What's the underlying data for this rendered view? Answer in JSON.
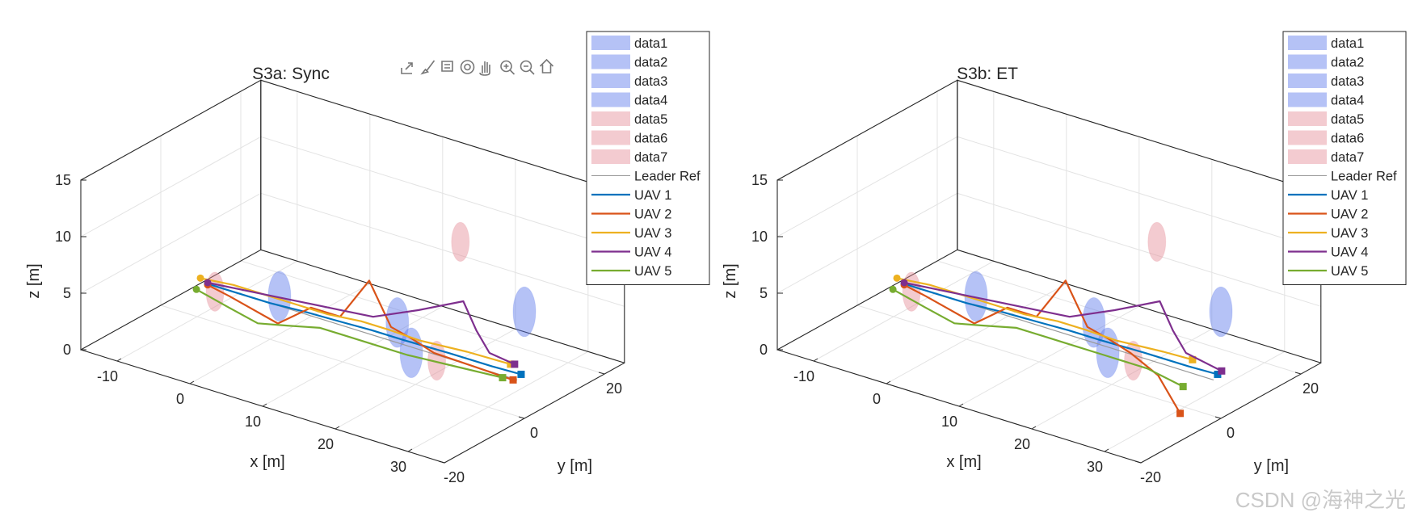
{
  "watermark": "CSDN @海神之光",
  "colors": {
    "obstacle_blue": "#5a78ea",
    "obstacle_red": "#e58c96",
    "leader_ref": "#9a9a9a",
    "uav1": "#0072BD",
    "uav2": "#D95319",
    "uav3": "#EDB120",
    "uav4": "#7E2F8E",
    "uav5": "#77AC30"
  },
  "toolbar": {
    "icons": [
      "export-icon",
      "brush-icon",
      "datatip-icon",
      "rotate-icon",
      "pan-icon",
      "zoom-in-icon",
      "zoom-out-icon",
      "home-icon"
    ]
  },
  "chart_data": [
    {
      "type": "line",
      "title": "S3a: Sync",
      "xlabel": "x [m]",
      "ylabel": "y [m]",
      "zlabel": "z [m]",
      "xlim": [
        -15,
        35
      ],
      "ylim": [
        -20,
        25
      ],
      "zlim": [
        0,
        15
      ],
      "xticks": [
        -10,
        0,
        10,
        20,
        30
      ],
      "yticks": [
        -20,
        0,
        20
      ],
      "zticks": [
        0,
        5,
        10,
        15
      ],
      "grid": true,
      "legend_position": "outside-right",
      "legend": [
        "data1",
        "data2",
        "data3",
        "data4",
        "data5",
        "data6",
        "data7",
        "Leader Ref",
        "UAV 1",
        "UAV 2",
        "UAV 3",
        "UAV 4",
        "UAV 5"
      ],
      "obstacles": [
        {
          "name": "data1",
          "color": "blue",
          "x": 0.5,
          "y": 1.5,
          "z": 3.6,
          "r": 2.8
        },
        {
          "name": "data2",
          "color": "blue",
          "x": 14.5,
          "y": 5.5,
          "z": 3.3,
          "r": 2.8
        },
        {
          "name": "data3",
          "color": "blue",
          "x": 20,
          "y": -1,
          "z": 3.0,
          "r": 2.8
        },
        {
          "name": "data4",
          "color": "blue",
          "x": 24,
          "y": 20,
          "z": 3.3,
          "r": 2.8
        },
        {
          "name": "data5",
          "color": "red",
          "x": -7,
          "y": -1,
          "z": 3.0,
          "r": 2.2
        },
        {
          "name": "data6",
          "color": "red",
          "x": 13,
          "y": 24,
          "z": 6.5,
          "r": 2.2
        },
        {
          "name": "data7",
          "color": "red",
          "x": 23.5,
          "y": -1,
          "z": 3.0,
          "r": 2.2
        }
      ],
      "series": [
        {
          "name": "Leader Ref",
          "x": [
            -8,
            0,
            8,
            12,
            16,
            22,
            28,
            34
          ],
          "y": [
            0,
            0,
            0,
            0,
            0,
            0,
            0,
            0
          ],
          "z": [
            3.2,
            3.2,
            3.2,
            3.2,
            3.2,
            3.2,
            3.2,
            3.2
          ]
        },
        {
          "name": "UAV 1",
          "x": [
            -8,
            -5,
            0,
            5,
            10,
            14,
            18,
            24,
            30,
            34
          ],
          "y": [
            -1,
            -1,
            0,
            0,
            0,
            0,
            1,
            1,
            1,
            1
          ],
          "z": [
            3.5,
            3.5,
            3.2,
            3.4,
            3.5,
            3.6,
            3.3,
            3.4,
            3.4,
            3.5
          ]
        },
        {
          "name": "UAV 2",
          "x": [
            -8,
            -5,
            0,
            4,
            8,
            12,
            15,
            18,
            22,
            28,
            34
          ],
          "y": [
            -1,
            -1,
            2,
            3,
            3,
            3,
            3,
            3,
            1,
            0,
            -1
          ],
          "z": [
            3.4,
            3.0,
            1.0,
            3.0,
            3.0,
            7.0,
            3.5,
            3.0,
            3.0,
            3.2,
            3.4
          ]
        },
        {
          "name": "UAV 3",
          "x": [
            -9,
            -5,
            0,
            4,
            8,
            12,
            16,
            20,
            26,
            32
          ],
          "y": [
            -1,
            0,
            0,
            0,
            0,
            1,
            1,
            1,
            2,
            2
          ],
          "z": [
            3.8,
            3.8,
            3.8,
            3.8,
            3.8,
            3.8,
            3.8,
            3.7,
            3.7,
            3.8
          ]
        },
        {
          "name": "UAV 4",
          "x": [
            -8,
            -4,
            0,
            4,
            8,
            12,
            16,
            20,
            24,
            28,
            32
          ],
          "y": [
            -1,
            0,
            1,
            2,
            3,
            4,
            8,
            12,
            8,
            4,
            3
          ],
          "z": [
            3.6,
            3.6,
            3.6,
            3.6,
            3.6,
            3.6,
            4.2,
            5.0,
            4.0,
            3.6,
            3.6
          ]
        },
        {
          "name": "UAV 5",
          "x": [
            -9,
            -4,
            0,
            4,
            8,
            12,
            16,
            20,
            26,
            32
          ],
          "y": [
            -2,
            -3,
            -3,
            -3,
            -2,
            -2,
            -2,
            -2,
            -1,
            0
          ],
          "z": [
            3.0,
            2.6,
            2.0,
            2.6,
            3.0,
            3.0,
            3.0,
            3.0,
            3.0,
            3.0
          ]
        }
      ]
    },
    {
      "type": "line",
      "title": "S3b: ET",
      "xlabel": "x [m]",
      "ylabel": "y [m]",
      "zlabel": "z [m]",
      "xlim": [
        -15,
        35
      ],
      "ylim": [
        -20,
        25
      ],
      "zlim": [
        0,
        15
      ],
      "xticks": [
        -10,
        0,
        10,
        20,
        30
      ],
      "yticks": [
        -20,
        0,
        20
      ],
      "zticks": [
        0,
        5,
        10,
        15
      ],
      "grid": true,
      "legend_position": "outside-right",
      "legend": [
        "data1",
        "data2",
        "data3",
        "data4",
        "data5",
        "data6",
        "data7",
        "Leader Ref",
        "UAV 1",
        "UAV 2",
        "UAV 3",
        "UAV 4",
        "UAV 5"
      ],
      "obstacles": [
        {
          "name": "data1",
          "color": "blue",
          "x": 0.5,
          "y": 1.5,
          "z": 3.6,
          "r": 2.8
        },
        {
          "name": "data2",
          "color": "blue",
          "x": 14.5,
          "y": 5.5,
          "z": 3.3,
          "r": 2.8
        },
        {
          "name": "data3",
          "color": "blue",
          "x": 20,
          "y": -1,
          "z": 3.0,
          "r": 2.8
        },
        {
          "name": "data4",
          "color": "blue",
          "x": 24,
          "y": 20,
          "z": 3.3,
          "r": 2.8
        },
        {
          "name": "data5",
          "color": "red",
          "x": -7,
          "y": -1,
          "z": 3.0,
          "r": 2.2
        },
        {
          "name": "data6",
          "color": "red",
          "x": 13,
          "y": 24,
          "z": 6.5,
          "r": 2.2
        },
        {
          "name": "data7",
          "color": "red",
          "x": 23.5,
          "y": -1,
          "z": 3.0,
          "r": 2.2
        }
      ],
      "series": [
        {
          "name": "Leader Ref",
          "x": [
            -8,
            0,
            8,
            12,
            16,
            22,
            28,
            34
          ],
          "y": [
            0,
            0,
            0,
            0,
            0,
            0,
            0,
            0
          ],
          "z": [
            3.2,
            3.2,
            3.2,
            3.2,
            3.2,
            3.2,
            3.2,
            3.2
          ]
        },
        {
          "name": "UAV 1",
          "x": [
            -8,
            -5,
            0,
            5,
            10,
            14,
            18,
            24,
            30,
            34
          ],
          "y": [
            -1,
            -1,
            0,
            0,
            0,
            0,
            1,
            1,
            1,
            1
          ],
          "z": [
            3.5,
            3.5,
            3.2,
            3.4,
            3.5,
            3.6,
            3.3,
            3.4,
            3.4,
            3.5
          ]
        },
        {
          "name": "UAV 2",
          "x": [
            -8,
            -5,
            0,
            4,
            8,
            12,
            15,
            18,
            22,
            28,
            36
          ],
          "y": [
            -1,
            -1,
            2,
            3,
            3,
            3,
            3,
            3,
            1,
            -3,
            -12
          ],
          "z": [
            3.4,
            3.0,
            1.0,
            3.0,
            3.0,
            7.0,
            3.5,
            3.0,
            3.0,
            3.0,
            3.0
          ]
        },
        {
          "name": "UAV 3",
          "x": [
            -9,
            -5,
            0,
            4,
            8,
            12,
            16,
            20,
            26,
            30
          ],
          "y": [
            -1,
            0,
            0,
            0,
            0,
            1,
            1,
            1,
            2,
            2
          ],
          "z": [
            3.8,
            3.8,
            3.8,
            3.8,
            3.8,
            3.8,
            3.8,
            3.7,
            3.7,
            3.8
          ]
        },
        {
          "name": "UAV 4",
          "x": [
            -8,
            -4,
            0,
            4,
            8,
            12,
            16,
            20,
            24,
            28,
            34
          ],
          "y": [
            -1,
            0,
            1,
            2,
            3,
            4,
            8,
            12,
            8,
            4,
            2
          ],
          "z": [
            3.6,
            3.6,
            3.6,
            3.6,
            3.6,
            3.6,
            4.2,
            5.0,
            4.0,
            3.6,
            3.6
          ]
        },
        {
          "name": "UAV 5",
          "x": [
            -9,
            -4,
            0,
            4,
            8,
            12,
            16,
            20,
            26,
            32
          ],
          "y": [
            -2,
            -3,
            -3,
            -3,
            -2,
            -2,
            -2,
            -2,
            -2,
            -4
          ],
          "z": [
            3.0,
            2.6,
            2.0,
            2.6,
            3.0,
            3.0,
            3.0,
            3.0,
            3.0,
            3.0
          ]
        }
      ]
    }
  ]
}
